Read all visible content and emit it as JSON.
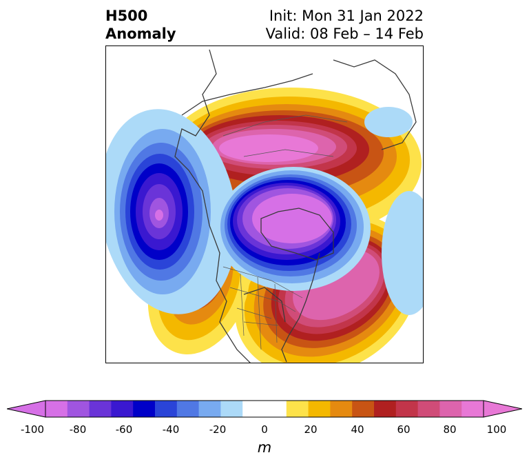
{
  "title": {
    "left_line1": "H500",
    "left_line2": "Anomaly",
    "right_line1": "Init: Mon 31 Jan 2022",
    "right_line2": "Valid: 08 Feb – 14 Feb"
  },
  "colorbar": {
    "unit": "m",
    "ticks": [
      "-100",
      "-80",
      "-60",
      "-40",
      "-20",
      "0",
      "20",
      "40",
      "60",
      "80",
      "100"
    ],
    "min": -100,
    "max": 100,
    "step": 10,
    "colors": [
      "#d670e6",
      "#a055e0",
      "#6a34d8",
      "#3a18d0",
      "#0000c8",
      "#2a44d8",
      "#5078e4",
      "#78aaf0",
      "#acdaf8",
      "#ffffff",
      "#ffffff",
      "#fde24a",
      "#f4b800",
      "#e58a10",
      "#c85414",
      "#b02020",
      "#c2354a",
      "#d04c78",
      "#dd64ad",
      "#e878d6"
    ],
    "extend": "both"
  },
  "map": {
    "projection": "north-polar stereographic",
    "field": "500 hPa geopotential height anomaly",
    "features": [
      "positive anomaly over Eurasia",
      "negative anomaly over Canadian Arctic/Greenland",
      "positive anomaly over North Atlantic",
      "negative anomaly over North Pacific",
      "positive anomaly over western North America"
    ]
  }
}
